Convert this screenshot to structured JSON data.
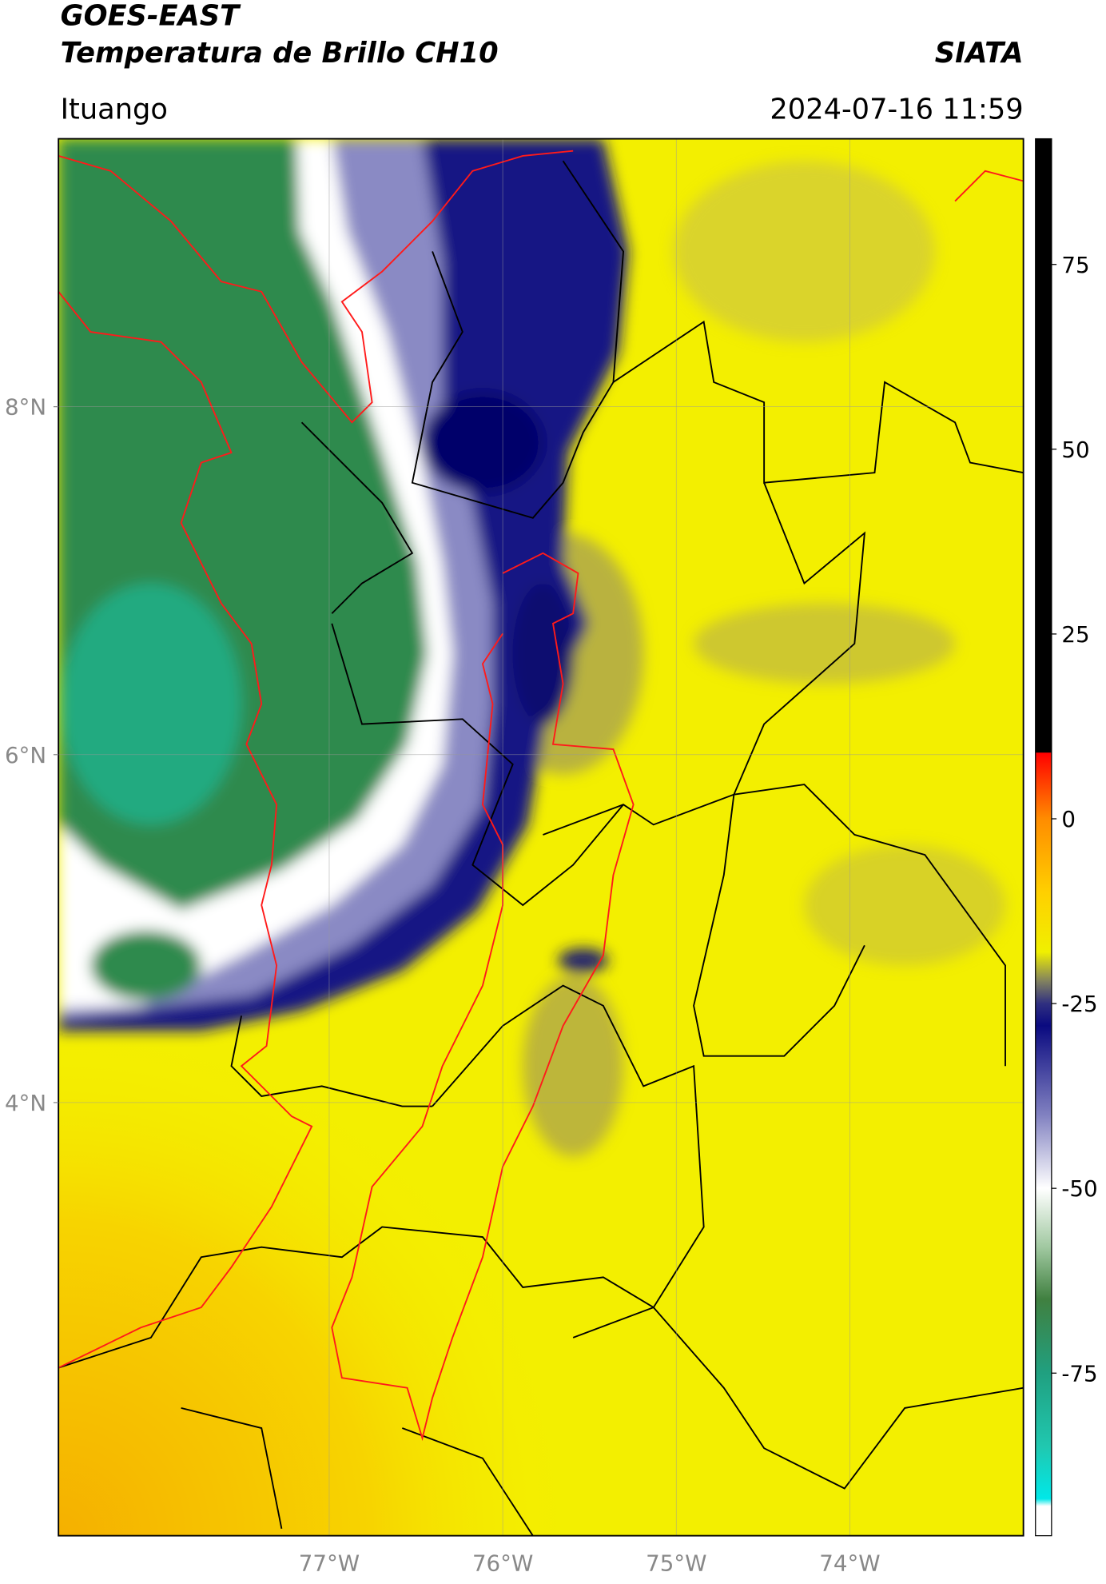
{
  "header": {
    "title_line1": "GOES-EAST",
    "title_line2": "Temperatura de Brillo CH10",
    "brand": "SIATA",
    "location": "Ituango",
    "datetime": "2024-07-16 11:59"
  },
  "map": {
    "lonlim": [
      -78.56,
      -73.0
    ],
    "latlim": [
      1.51,
      9.54
    ],
    "lonticks": [
      {
        "value": -77,
        "label": "77°W"
      },
      {
        "value": -76,
        "label": "76°W"
      },
      {
        "value": -75,
        "label": "75°W"
      },
      {
        "value": -74,
        "label": "74°W"
      }
    ],
    "latticks": [
      {
        "value": 8,
        "label": "8°N"
      },
      {
        "value": 6,
        "label": "6°N"
      },
      {
        "value": 4,
        "label": "4°N"
      }
    ],
    "grid": true
  },
  "colorbar": {
    "lim": [
      -97,
      92
    ],
    "ticks": [
      75,
      50,
      25,
      0,
      -25,
      -50,
      -75
    ],
    "stops": [
      {
        "value": 92,
        "color": "#000000"
      },
      {
        "value": 9,
        "color": "#000000"
      },
      {
        "value": 8.9,
        "color": "#ff0000"
      },
      {
        "value": 0,
        "color": "#ff8c00"
      },
      {
        "value": -10,
        "color": "#ffd000"
      },
      {
        "value": -18,
        "color": "#f0f000"
      },
      {
        "value": -22,
        "color": "#808060"
      },
      {
        "value": -25,
        "color": "#303080"
      },
      {
        "value": -28,
        "color": "#0a0a80"
      },
      {
        "value": -40,
        "color": "#8080c0"
      },
      {
        "value": -50,
        "color": "#ffffff"
      },
      {
        "value": -58,
        "color": "#a0c8a0"
      },
      {
        "value": -65,
        "color": "#408040"
      },
      {
        "value": -75,
        "color": "#20a080"
      },
      {
        "value": -85,
        "color": "#20c8b0"
      },
      {
        "value": -92,
        "color": "#00e8e8"
      },
      {
        "value": -93,
        "color": "#ffffff"
      },
      {
        "value": -97,
        "color": "#ffffff"
      }
    ]
  }
}
